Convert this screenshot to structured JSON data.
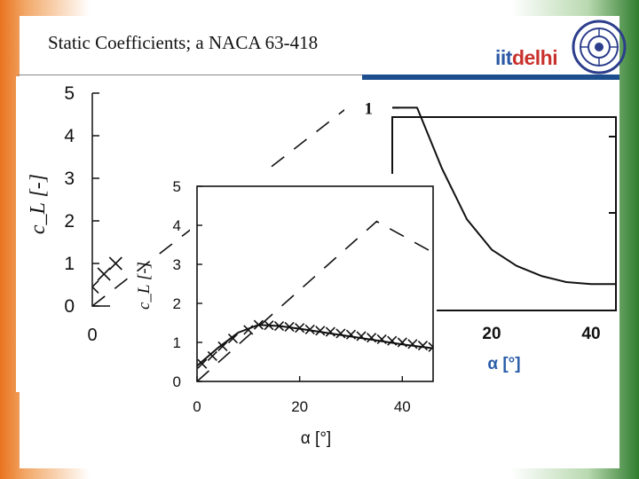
{
  "slide": {
    "title": "Static Coefficients; a NACA 63-418",
    "brand_part1": "iit",
    "brand_part2": "delhi"
  },
  "chart_data": [
    {
      "type": "line",
      "title": "",
      "xlabel": "",
      "ylabel": "c_L [-]",
      "yticks": [
        "0",
        "1",
        "2",
        "3",
        "4",
        "5"
      ],
      "xticks": [
        "0"
      ],
      "ylim": [
        0,
        5
      ],
      "series": [
        {
          "style": "dashed",
          "x": [
            0,
            45
          ],
          "y": [
            0,
            4.8
          ]
        },
        {
          "style": "x-markers",
          "x": [
            0,
            2,
            4
          ],
          "y": [
            0.45,
            0.75,
            1.0
          ]
        }
      ]
    },
    {
      "type": "line",
      "title": "",
      "xlabel": "α [°]",
      "ylabel": "",
      "yticks": [
        "1"
      ],
      "xticks": [
        "20",
        "40"
      ],
      "xlim": [
        0,
        45
      ],
      "ylim": [
        0,
        1.05
      ],
      "series": [
        {
          "style": "solid",
          "x": [
            0,
            5,
            10,
            15,
            20,
            25,
            30,
            35,
            40,
            45
          ],
          "y": [
            1.0,
            1.0,
            0.7,
            0.45,
            0.3,
            0.22,
            0.17,
            0.14,
            0.13,
            0.13
          ]
        }
      ]
    },
    {
      "type": "line",
      "title": "",
      "xlabel": "α [°]",
      "ylabel": "c_L [-]",
      "yticks": [
        "0",
        "1",
        "2",
        "3",
        "4",
        "5"
      ],
      "xticks": [
        "0",
        "20",
        "40"
      ],
      "xlim": [
        0,
        46
      ],
      "ylim": [
        0,
        5
      ],
      "series": [
        {
          "style": "dashed",
          "x": [
            0,
            35,
            46
          ],
          "y": [
            0,
            4.1,
            3.3
          ]
        },
        {
          "style": "solid",
          "x": [
            0,
            4,
            8,
            12,
            16,
            20,
            25,
            30,
            35,
            40,
            46
          ],
          "y": [
            0.4,
            0.85,
            1.25,
            1.45,
            1.42,
            1.35,
            1.25,
            1.15,
            1.05,
            0.95,
            0.85
          ]
        },
        {
          "style": "x-markers",
          "x": [
            1,
            3,
            5,
            7,
            10,
            12,
            14,
            16,
            18,
            20,
            22,
            24,
            26,
            28,
            30,
            32,
            34,
            36,
            38,
            40,
            42,
            44,
            46
          ],
          "y": [
            0.45,
            0.65,
            0.9,
            1.1,
            1.32,
            1.45,
            1.44,
            1.42,
            1.4,
            1.37,
            1.33,
            1.3,
            1.27,
            1.23,
            1.2,
            1.16,
            1.12,
            1.08,
            1.04,
            1.0,
            0.96,
            0.92,
            0.88
          ]
        }
      ]
    }
  ]
}
